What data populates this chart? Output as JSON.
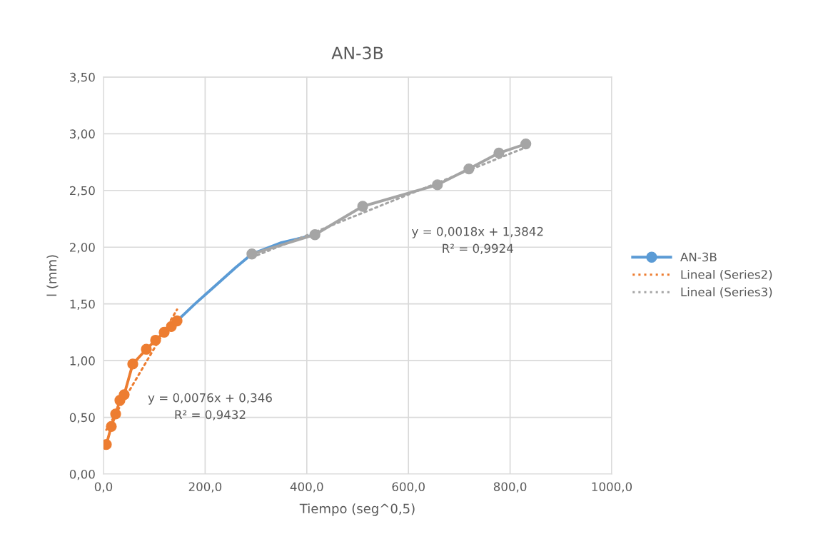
{
  "chart_data": {
    "type": "line",
    "title": "AN-3B",
    "xlabel": "Tiempo (seg^0,5)",
    "ylabel": "l (mm)",
    "xlim": [
      0,
      1000
    ],
    "ylim": [
      0,
      3.5
    ],
    "xticks": [
      {
        "value": 0,
        "label": "0,0"
      },
      {
        "value": 200,
        "label": "200,0"
      },
      {
        "value": 400,
        "label": "400,0"
      },
      {
        "value": 600,
        "label": "600,0"
      },
      {
        "value": 800,
        "label": "800,0"
      },
      {
        "value": 1000,
        "label": "1000,0"
      }
    ],
    "yticks": [
      {
        "value": 0,
        "label": "0,00"
      },
      {
        "value": 0.5,
        "label": "0,50"
      },
      {
        "value": 1,
        "label": "1,00"
      },
      {
        "value": 1.5,
        "label": "1,50"
      },
      {
        "value": 2,
        "label": "2,00"
      },
      {
        "value": 2.5,
        "label": "2,50"
      },
      {
        "value": 3,
        "label": "3,00"
      },
      {
        "value": 3.5,
        "label": "3,50"
      }
    ],
    "grid": true,
    "legend": "right",
    "marker": "circle",
    "line_style": "solid",
    "series": [
      {
        "name": "AN-3B",
        "color": "#5b9bd5",
        "marker": "none",
        "x": [
          144.7,
          180,
          220,
          260,
          292,
          350,
          416
        ],
        "values": [
          1.35,
          1.5,
          1.66,
          1.82,
          1.94,
          2.04,
          2.11
        ]
      },
      {
        "color": "#ed7d31",
        "x": [
          5.6,
          15.4,
          23.9,
          32.3,
          40.7,
          57.6,
          84.3,
          102.5,
          119.4,
          133.4,
          144.7
        ],
        "values": [
          0.26,
          0.42,
          0.53,
          0.65,
          0.7,
          0.97,
          1.1,
          1.18,
          1.25,
          1.3,
          1.35
        ]
      },
      {
        "color": "#a5a5a5",
        "x": [
          292,
          416,
          510,
          657,
          719,
          778,
          831
        ],
        "values": [
          1.94,
          2.11,
          2.36,
          2.55,
          2.69,
          2.83,
          2.91
        ]
      },
      {
        "name": "Lineal (Series2)",
        "type": "line",
        "color": "#ed7d31",
        "line_style": "dotted",
        "marker": "none",
        "x": [
          5.6,
          144.7
        ],
        "values": [
          0.39,
          1.45
        ]
      },
      {
        "name": "Lineal (Series3)",
        "type": "line",
        "color": "#a5a5a5",
        "line_style": "dotted",
        "marker": "none",
        "x": [
          292,
          831
        ],
        "values": [
          1.91,
          2.88
        ]
      }
    ],
    "annotations": [
      "y = 0,0076x + 0,346\nR² = 0,9432",
      "y = 0,0018x + 1,3842\nR² = 0,9924"
    ]
  }
}
